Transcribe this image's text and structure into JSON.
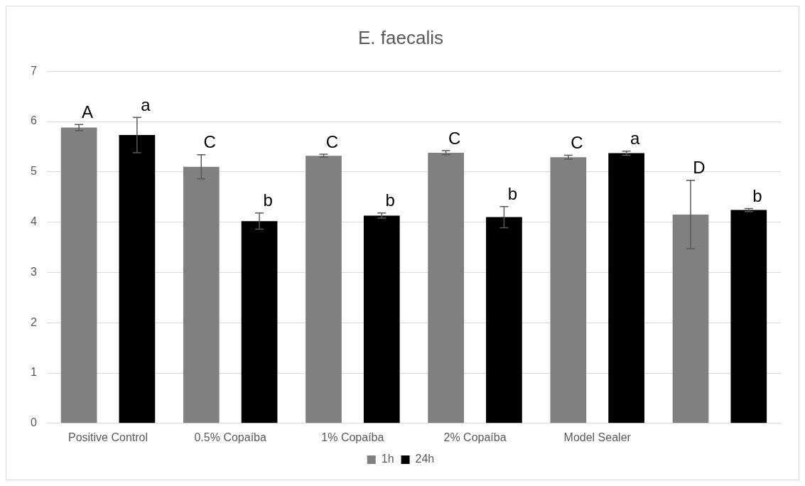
{
  "chart_data": {
    "type": "bar",
    "title": "E. faecalis",
    "categories": [
      "Positive Control",
      "0.5% Copaíba",
      "1% Copaíba",
      "2% Copaíba",
      "Model Sealer",
      null
    ],
    "series": [
      {
        "name": "1h",
        "color": "#808080",
        "values": [
          5.88,
          5.1,
          5.32,
          5.38,
          5.29,
          4.15
        ],
        "errors": [
          0.06,
          0.24,
          0.03,
          0.04,
          0.04,
          0.68
        ]
      },
      {
        "name": "24h",
        "color": "#000000",
        "values": [
          5.73,
          4.02,
          4.13,
          4.1,
          5.37,
          4.24
        ],
        "errors": [
          0.35,
          0.16,
          0.05,
          0.21,
          0.04,
          0.03
        ]
      }
    ],
    "ylim": [
      0,
      7
    ],
    "yticks": [
      0,
      1,
      2,
      3,
      4,
      5,
      6,
      7
    ],
    "grid": "y",
    "legend": "bottom",
    "annotations": [
      "A",
      "a",
      "C",
      "b",
      "C",
      "b",
      "C",
      "b",
      "C",
      "a",
      "D",
      "b"
    ]
  }
}
